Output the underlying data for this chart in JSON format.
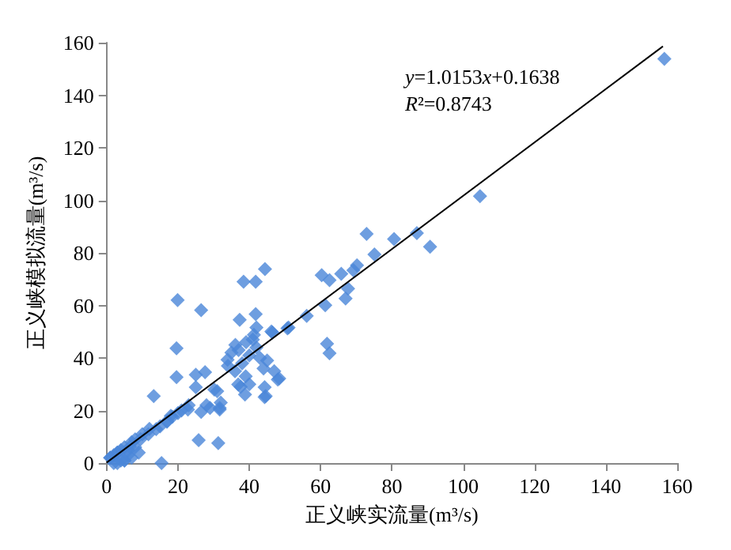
{
  "chart_data": {
    "type": "scatter",
    "xlabel": "正义峡实流量(m³/s)",
    "ylabel": "正义峡模拟流量(m³/s)",
    "xlim": [
      0,
      160
    ],
    "ylim": [
      0,
      160
    ],
    "xticks": [
      0,
      20,
      40,
      60,
      80,
      100,
      120,
      140,
      160
    ],
    "yticks": [
      0,
      20,
      40,
      60,
      80,
      100,
      120,
      140,
      160
    ],
    "grid": false,
    "annotations": [
      "y=1.0153x+0.1638",
      "R²=0.8743"
    ],
    "series": [
      {
        "color": "#4a86d8",
        "marker": "diamond",
        "x": [
          156.4,
          104.7,
          72.9,
          80.6,
          87,
          90.7,
          75.1,
          70.2,
          69.2,
          65.8,
          60.3,
          62.5,
          67.7,
          67,
          61.3,
          56.1,
          50.7,
          44.4,
          38.4,
          41.8,
          41.8,
          37.3,
          42,
          46.2,
          61.8,
          62.5,
          48.4,
          44.3,
          44.6,
          36.9,
          38.8,
          31,
          31.7,
          25.8,
          31.3,
          19.9,
          26.5,
          19.6,
          19.6,
          13.2,
          25,
          27.6,
          25,
          30.2,
          26.5,
          31.7,
          22.8,
          18.4,
          16.9,
          13.9,
          11.7,
          9.5,
          6.5,
          15.4,
          48,
          44.3,
          37.6,
          33.9,
          36.1,
          39.1,
          41.3,
          46.5,
          51,
          35,
          38,
          40,
          42,
          44,
          36,
          39,
          43,
          45,
          41,
          37,
          34,
          40,
          47,
          28,
          29,
          32,
          21,
          23,
          20,
          18,
          17,
          15,
          12,
          10,
          8,
          7,
          5,
          4,
          3,
          2,
          1,
          5,
          6,
          7,
          3,
          4,
          2,
          1,
          6,
          8,
          9,
          5,
          3
        ],
        "values": [
          153.8,
          101.6,
          87.2,
          85.3,
          87.5,
          82.3,
          79.4,
          75.3,
          73.4,
          72,
          71.5,
          69.6,
          66.4,
          62.6,
          60.1,
          56,
          51.3,
          73.8,
          69,
          69,
          56.7,
          54.5,
          51.6,
          50.1,
          45.4,
          41.8,
          32.2,
          28.9,
          25.5,
          29.9,
          26.1,
          27.4,
          21,
          8.7,
          7.6,
          62,
          58.2,
          43.7,
          32.7,
          25.5,
          33.6,
          34.6,
          28.9,
          28,
          19.5,
          20.4,
          20.4,
          17.6,
          15.7,
          12.9,
          11,
          9.1,
          6.2,
          0,
          31.8,
          25.1,
          29,
          39.3,
          45,
          46,
          48.8,
          49.7,
          51.6,
          42,
          38,
          41,
          44,
          36,
          35,
          33,
          40,
          39,
          47,
          43,
          37,
          30,
          35,
          22,
          21,
          23,
          20,
          22,
          19,
          18,
          16,
          14,
          13,
          11,
          9,
          8,
          6,
          5,
          4,
          3,
          2,
          1,
          3,
          2,
          4,
          1,
          0,
          2,
          5,
          6,
          4,
          1,
          0
        ]
      },
      {
        "type": "line",
        "color": "#000000",
        "marker": "none",
        "x": [
          0,
          156
        ],
        "values": [
          0.2,
          158.6
        ]
      }
    ]
  }
}
